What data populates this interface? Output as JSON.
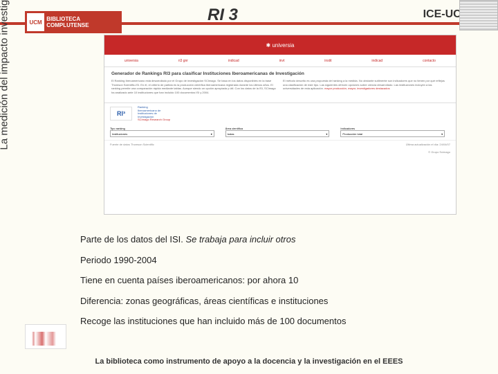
{
  "header": {
    "logo_abbrev": "UCM",
    "logo_text": "BIBLIOTECA COMPLUTENSE",
    "title": "RI 3",
    "right_label": "ICE-UCM"
  },
  "sidebar": {
    "vertical_text": "La medición del impacto investigación científica"
  },
  "screenshot": {
    "brand": "✱ universia",
    "nav": [
      "universia",
      "ri3 gnr",
      "indicad",
      "invt",
      "instit",
      "indicad",
      "contacto"
    ],
    "heading": "Generador de Rankings RI3 para clasificar Instituciones Iberoamericanas de Investigación",
    "col_left": "El Ranking Iberoamericano está desarrollado por el Grupo de investigación SCImago. Se basa en los datos disponibles en la base Thomson Scientific-ISI. En él, el criterio de partida es la producción científica iberoamericana registrada durante los últimos años. El ranking permite una comparación rápida mediante tablas. Aunque siendo un opción apropiada y útil. Con los datos de la ISI, SCImago ha analizado ante 10 instituciones que han incluido 100 documentos ISI y 2004.",
    "col_right": "El método descrito es una propuesta del ranking a la medida. No obstante sutilmente son indicadores que no tienen por qué reflejos una clasificación de este tipo. Las siguientes ofrecen opciones sobre ciencia desarrollado. Las instituciones incluyen a las universidades de esta aplicación.",
    "col_right_links": [
      "mayor producción",
      "mayor",
      "investigadores destacados"
    ],
    "logo_text": "RI³",
    "logo_lines": [
      "Ranking",
      "Iberoamericano de",
      "Instituciones de",
      "Investigación"
    ],
    "logo_sub": "SCImago Research Group",
    "form_labels": [
      "Tipo ranking",
      "Área científica",
      "Indicadores"
    ],
    "form_values": [
      "Instituciones",
      "todas",
      "Producción total"
    ],
    "footer_left": "Fuente de datos Thomson Scientific",
    "footer_right_prefix": "Última actualización el día: ",
    "footer_date": "24/04/07",
    "footer_credit": "© Grupo Scimago"
  },
  "bullets": {
    "b1a": "Parte de los datos del ISI. ",
    "b1b": "Se trabaja para incluir otros",
    "b2": "Periodo 1990-2004",
    "b3": "Tiene en cuenta países iberoamericanos: por ahora 10",
    "b4": "Diferencia: zonas geográficas, áreas científicas e instituciones",
    "b5": "Recoge las instituciones que han incluido más de 100 documentos"
  },
  "footer": {
    "text": "La biblioteca como instrumento de apoyo a la docencia y la investigación en el EEES"
  }
}
